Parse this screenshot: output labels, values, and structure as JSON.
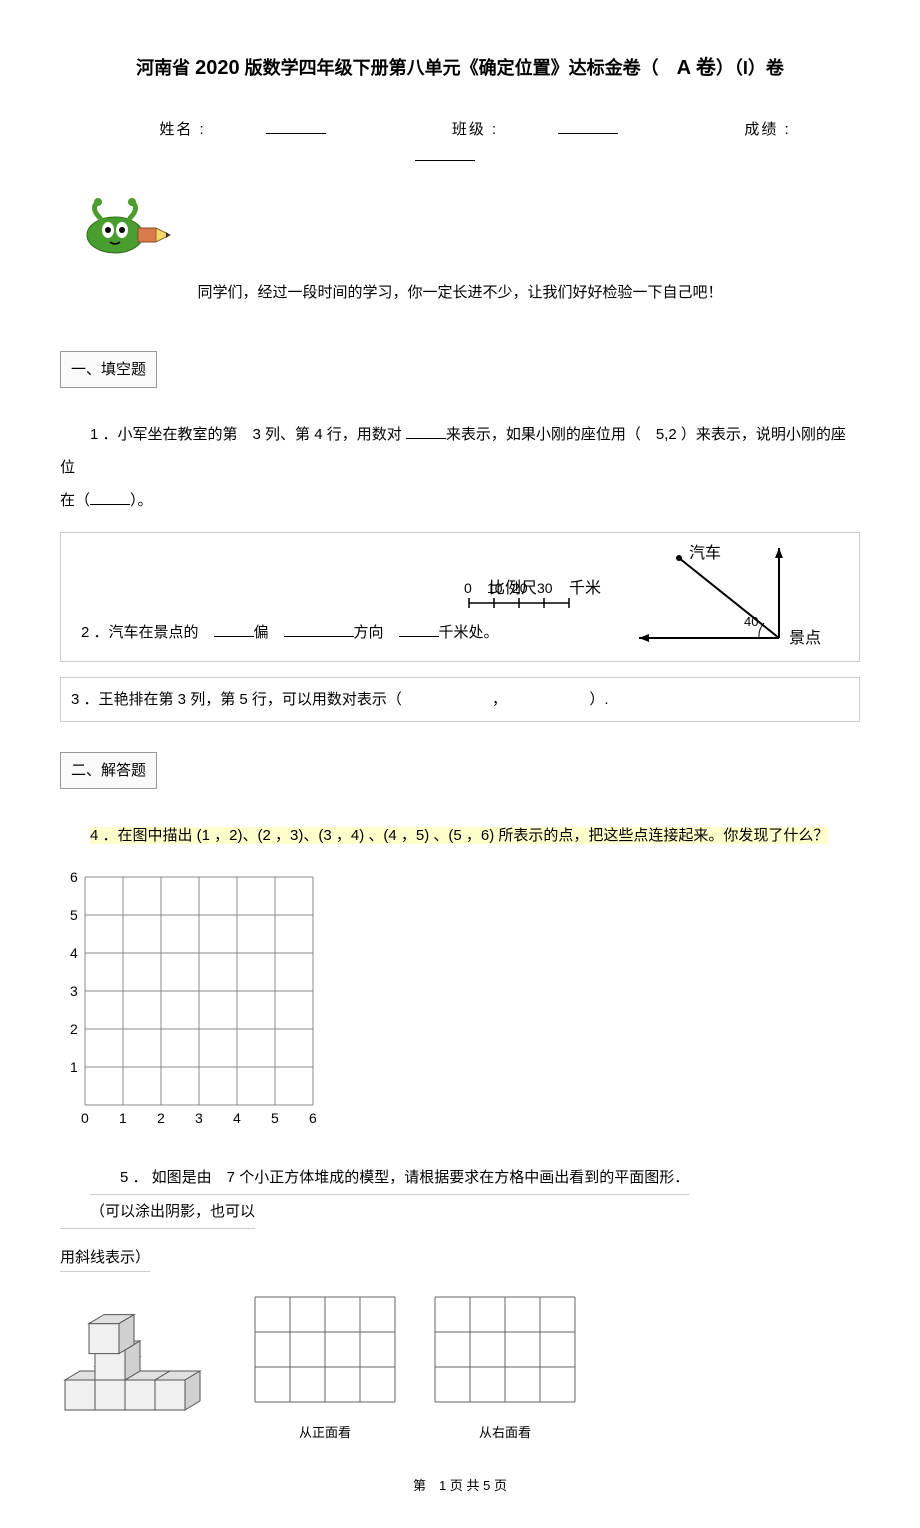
{
  "title": {
    "prefix": "河南省 ",
    "year": "2020",
    "rest": " 版数学四年级下册第八单元《确定位置》达标金卷（　",
    "variant": "A 卷",
    "suffix": "）（I）卷"
  },
  "info": {
    "name_label": "姓名 :",
    "class_label": "班级 :",
    "score_label": "成绩 :"
  },
  "intro": "同学们，经过一段时间的学习，你一定长进不少，让我们好好检验一下自己吧！",
  "sections": {
    "fill": "一、填空题",
    "answer": "二、解答题"
  },
  "q1": {
    "p1": "1 ．小军坐在教室的第　3 列、第 4 行，用数对 ",
    "p2": "来表示，如果小刚的座位用（　5,2 ）来表示，说明小刚的座位",
    "p3": "在（",
    "p4": "）。"
  },
  "q2": {
    "text_prefix": "2 ．汽车在景点的　",
    "text_mid1": "偏　",
    "text_mid2": "方向　",
    "text_end": "千米处。",
    "scale_label": "比例尺",
    "scale_unit": "千米",
    "scale_ticks": [
      "0",
      "10",
      "20",
      "30"
    ],
    "car_label": "汽车",
    "spot_label": "景点",
    "angle": "40",
    "colors": {
      "line": "#000000",
      "bg": "#ffffff"
    }
  },
  "q3": {
    "text": "3 ．王艳排在第 3 列，第 5 行，可以用数对表示（　　　　　　，　　　　　　）."
  },
  "q4": {
    "text": "4 ．在图中描出 (1 ，2)、(2 ，3)、(3 ，4) 、(4 ，5) 、(5 ，6) 所表示的点，把这些点连接起来。你发现了什么？",
    "grid": {
      "xmax": 6,
      "ymax": 6,
      "cell_size": 38,
      "axis_labels_x": [
        "0",
        "1",
        "2",
        "3",
        "4",
        "5",
        "6"
      ],
      "axis_labels_y": [
        "1",
        "2",
        "3",
        "4",
        "5",
        "6"
      ],
      "line_color": "#888888",
      "text_color": "#000000"
    }
  },
  "q5": {
    "p1": "5 ． 如图是由　7 个小正方体堆成的模型，请根据要求在方格中画出看到的平面图形．",
    "p2": "（可以涂出阴影，也可以",
    "p3": "用斜线表示）",
    "front_label": "从正面看",
    "right_label": "从右面看",
    "grid": {
      "cols": 4,
      "rows": 3,
      "cell": 35,
      "line_color": "#666666"
    },
    "cube": {
      "fill": "#f0f0f0",
      "stroke": "#555555",
      "size": 30
    }
  },
  "footer": {
    "prefix": "第　",
    "page": "1",
    "suffix": " 页 共 5 页"
  },
  "pencil": {
    "body_color": "#4a9d2f",
    "eraser_color": "#d97b4a",
    "tip_color": "#f5d76e",
    "eye_color": "#ffffff"
  }
}
